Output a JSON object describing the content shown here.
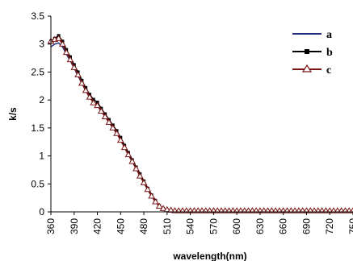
{
  "chart_data": {
    "type": "line",
    "title": "",
    "xlabel": "wavelength(nm)",
    "ylabel": "k/s",
    "xlim": [
      360,
      750
    ],
    "ylim": [
      0,
      3.5
    ],
    "x_ticks": [
      360,
      390,
      420,
      450,
      480,
      510,
      540,
      570,
      600,
      630,
      660,
      690,
      720,
      750
    ],
    "x_tick_labels": [
      "360",
      "390",
      "420",
      "450",
      "480",
      "510",
      "540",
      "570",
      "600",
      "630",
      "660",
      "690",
      "720",
      "750"
    ],
    "y_ticks": [
      0,
      0.5,
      1,
      1.5,
      2,
      2.5,
      3,
      3.5
    ],
    "y_tick_labels": [
      "0",
      "0.5",
      "1",
      "1.5",
      "2",
      "2.5",
      "3",
      "3.5"
    ],
    "grid": false,
    "legend_position": "top-right",
    "series": [
      {
        "name": "a",
        "color": "#1f2f7a",
        "marker": "none",
        "x": [
          360,
          365,
          370,
          375,
          380,
          385,
          390,
          395,
          400,
          405,
          410,
          415,
          420,
          425,
          430,
          435,
          440,
          445,
          450,
          455,
          460,
          465,
          470,
          475,
          480,
          485,
          490,
          495,
          500,
          505,
          510,
          515,
          520,
          525,
          530,
          535,
          540,
          545,
          550,
          555,
          560,
          565,
          570,
          575,
          580,
          585,
          590,
          595,
          600,
          605,
          610,
          615,
          620,
          625,
          630,
          635,
          640,
          645,
          650,
          655,
          660,
          665,
          670,
          675,
          680,
          685,
          690,
          695,
          700,
          705,
          710,
          715,
          720,
          725,
          730,
          735,
          740,
          745,
          750
        ],
        "y": [
          2.95,
          3.0,
          3.02,
          2.95,
          2.82,
          2.7,
          2.57,
          2.43,
          2.3,
          2.16,
          2.05,
          1.96,
          1.9,
          1.8,
          1.7,
          1.6,
          1.52,
          1.42,
          1.3,
          1.15,
          1.02,
          0.9,
          0.78,
          0.65,
          0.52,
          0.4,
          0.28,
          0.18,
          0.1,
          0.05,
          0.03,
          0.02,
          0.01,
          0.01,
          0.01,
          0.01,
          0.01,
          0.01,
          0.01,
          0.01,
          0.01,
          0.01,
          0.01,
          0.01,
          0.01,
          0.01,
          0.01,
          0.01,
          0.01,
          0.01,
          0.01,
          0.01,
          0.01,
          0.01,
          0.01,
          0.01,
          0.01,
          0.01,
          0.01,
          0.01,
          0.01,
          0.01,
          0.01,
          0.01,
          0.01,
          0.01,
          0.01,
          0.01,
          0.01,
          0.01,
          0.01,
          0.01,
          0.01,
          0.01,
          0.01,
          0.01,
          0.01,
          0.01,
          0.01
        ]
      },
      {
        "name": "b",
        "color": "#000000",
        "marker": "square",
        "x": [
          360,
          365,
          370,
          375,
          380,
          385,
          390,
          395,
          400,
          405,
          410,
          415,
          420,
          425,
          430,
          435,
          440,
          445,
          450,
          455,
          460,
          465,
          470,
          475,
          480,
          485,
          490,
          495,
          500,
          505,
          510,
          515,
          520,
          525,
          530,
          535,
          540,
          545,
          550,
          555,
          560,
          565,
          570,
          575,
          580,
          585,
          590,
          595,
          600,
          605,
          610,
          615,
          620,
          625,
          630,
          635,
          640,
          645,
          650,
          655,
          660,
          665,
          670,
          675,
          680,
          685,
          690,
          695,
          700,
          705,
          710,
          715,
          720,
          725,
          730,
          735,
          740,
          745,
          750
        ],
        "y": [
          3.05,
          3.1,
          3.15,
          3.05,
          2.9,
          2.77,
          2.63,
          2.5,
          2.35,
          2.22,
          2.1,
          2.01,
          1.96,
          1.85,
          1.75,
          1.65,
          1.55,
          1.45,
          1.33,
          1.19,
          1.06,
          0.93,
          0.8,
          0.68,
          0.55,
          0.42,
          0.3,
          0.2,
          0.11,
          0.06,
          0.03,
          0.02,
          0.01,
          0.01,
          0.01,
          0.01,
          0.01,
          0.01,
          0.01,
          0.01,
          0.01,
          0.01,
          0.01,
          0.01,
          0.01,
          0.01,
          0.01,
          0.01,
          0.01,
          0.01,
          0.01,
          0.01,
          0.01,
          0.01,
          0.01,
          0.01,
          0.01,
          0.01,
          0.01,
          0.01,
          0.01,
          0.01,
          0.01,
          0.01,
          0.01,
          0.01,
          0.01,
          0.01,
          0.01,
          0.01,
          0.01,
          0.01,
          0.01,
          0.01,
          0.01,
          0.01,
          0.01,
          0.01,
          0.01
        ]
      },
      {
        "name": "c",
        "color": "#7a1414",
        "marker": "triangle",
        "x": [
          360,
          365,
          370,
          375,
          380,
          385,
          390,
          395,
          400,
          405,
          410,
          415,
          420,
          425,
          430,
          435,
          440,
          445,
          450,
          455,
          460,
          465,
          470,
          475,
          480,
          485,
          490,
          495,
          500,
          505,
          510,
          515,
          520,
          525,
          530,
          535,
          540,
          545,
          550,
          555,
          560,
          565,
          570,
          575,
          580,
          585,
          590,
          595,
          600,
          605,
          610,
          615,
          620,
          625,
          630,
          635,
          640,
          645,
          650,
          655,
          660,
          665,
          670,
          675,
          680,
          685,
          690,
          695,
          700,
          705,
          710,
          715,
          720,
          725,
          730,
          735,
          740,
          745,
          750
        ],
        "y": [
          3.05,
          3.08,
          3.1,
          3.0,
          2.85,
          2.72,
          2.58,
          2.45,
          2.3,
          2.17,
          2.05,
          1.95,
          1.9,
          1.8,
          1.7,
          1.6,
          1.5,
          1.4,
          1.28,
          1.15,
          1.02,
          0.9,
          0.77,
          0.64,
          0.52,
          0.4,
          0.28,
          0.18,
          0.1,
          0.06,
          0.04,
          0.03,
          0.02,
          0.02,
          0.02,
          0.02,
          0.02,
          0.02,
          0.02,
          0.02,
          0.02,
          0.02,
          0.02,
          0.02,
          0.02,
          0.02,
          0.02,
          0.02,
          0.02,
          0.02,
          0.02,
          0.02,
          0.02,
          0.02,
          0.02,
          0.02,
          0.02,
          0.02,
          0.02,
          0.02,
          0.02,
          0.02,
          0.02,
          0.02,
          0.02,
          0.02,
          0.02,
          0.02,
          0.02,
          0.02,
          0.02,
          0.02,
          0.02,
          0.02,
          0.02,
          0.02,
          0.02,
          0.02,
          0.02
        ]
      }
    ]
  }
}
